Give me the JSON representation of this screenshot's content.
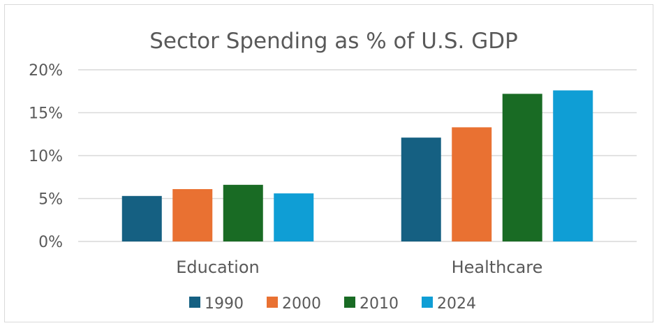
{
  "chart_data": {
    "type": "bar",
    "title": "Sector Spending as % of U.S. GDP",
    "categories": [
      "Education",
      "Healthcare"
    ],
    "series": [
      {
        "name": "1990",
        "values": [
          5.3,
          12.1
        ],
        "color": "#156082"
      },
      {
        "name": "2000",
        "values": [
          6.1,
          13.3
        ],
        "color": "#E97132"
      },
      {
        "name": "2010",
        "values": [
          6.6,
          17.2
        ],
        "color": "#196B24"
      },
      {
        "name": "2024",
        "values": [
          5.6,
          17.6
        ],
        "color": "#0F9ED5"
      }
    ],
    "ylim": [
      0,
      20
    ],
    "yticks": [
      0,
      5,
      10,
      15,
      20
    ],
    "ytick_labels": [
      "0%",
      "5%",
      "10%",
      "15%",
      "20%"
    ],
    "xlabel": "",
    "ylabel": "",
    "grid": true,
    "legend_position": "bottom"
  }
}
